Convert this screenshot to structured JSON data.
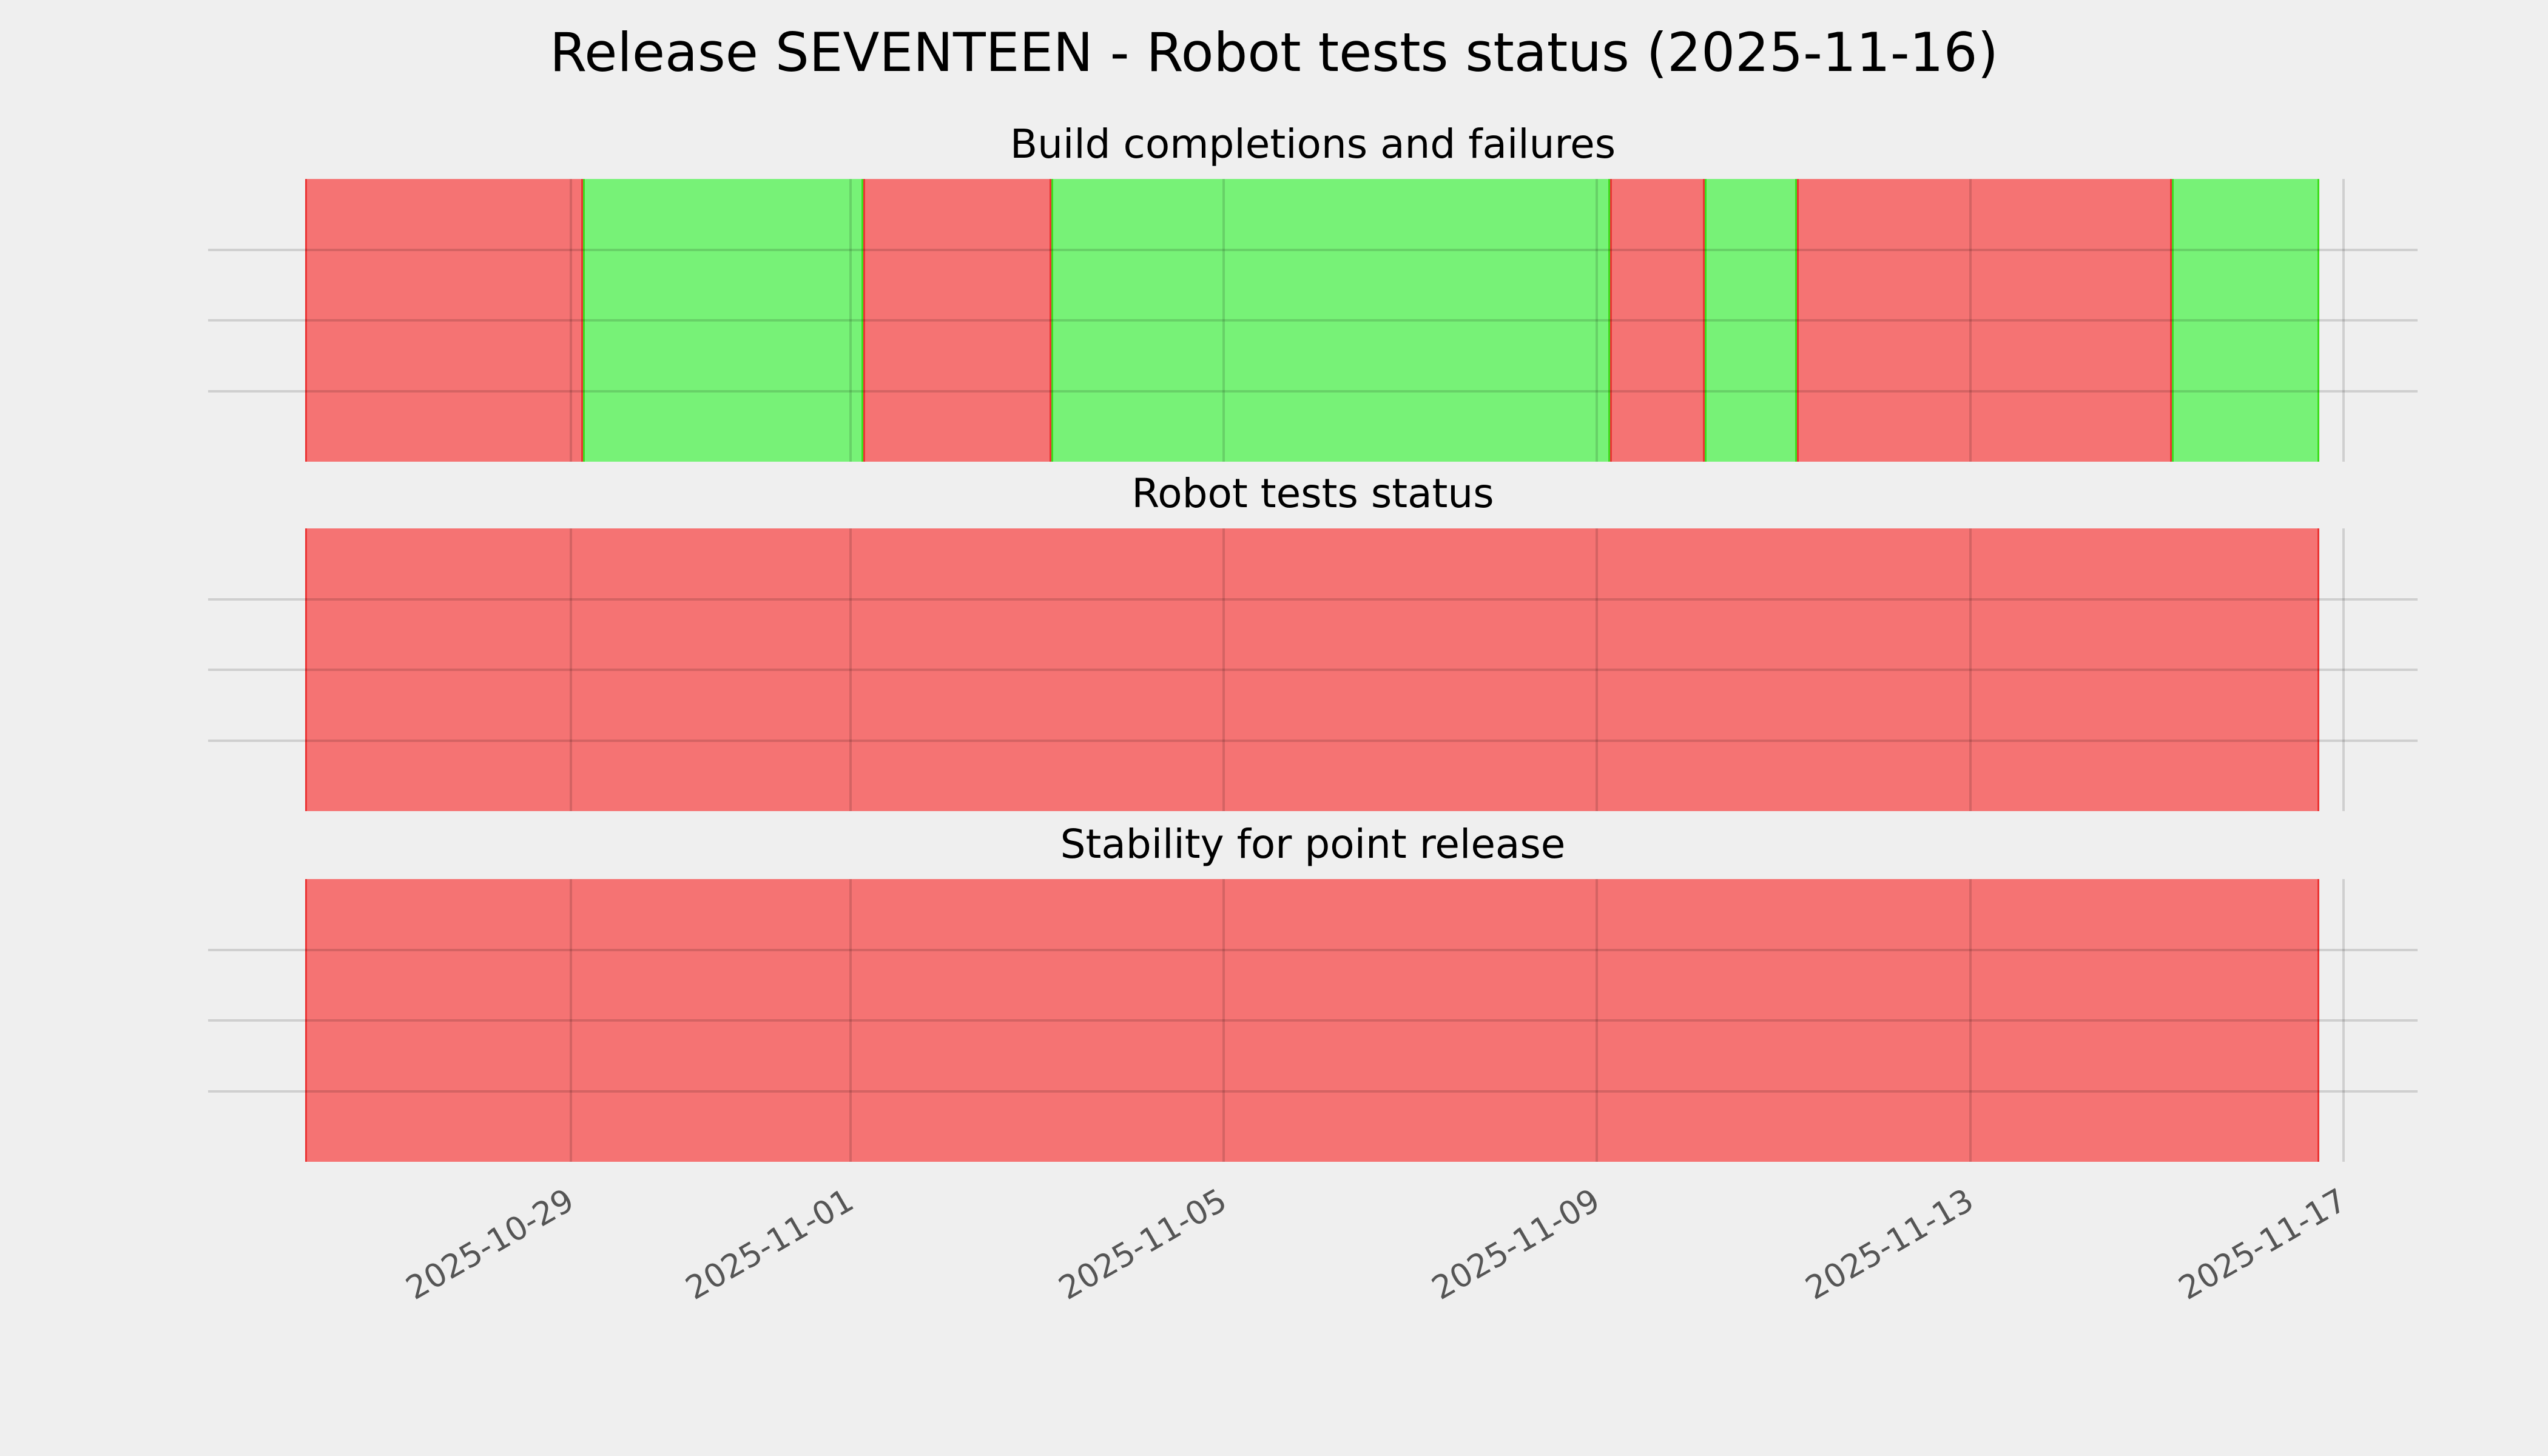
{
  "figure": {
    "title": "Release SEVENTEEN - Robot tests status (2025-11-16)",
    "background_color": "#efefef",
    "gridline_color": "rgba(0,0,0,0.135)",
    "tick_label_color": "#555555"
  },
  "chart_data": {
    "type": "status-timeline",
    "title": "Release SEVENTEEN - Robot tests status (2025-11-16)",
    "x_axis": {
      "start_date": "2025-10-26",
      "last_data_date": "2025-11-16",
      "axis_end_date": "2025-11-17",
      "grid": true,
      "tick_rotation_deg": -30
    },
    "x_ticks": [
      {
        "label": "2025-10-29",
        "pos": 0.1319
      },
      {
        "label": "2025-11-01",
        "pos": 0.2708
      },
      {
        "label": "2025-11-05",
        "pos": 0.456
      },
      {
        "label": "2025-11-09",
        "pos": 0.6412
      },
      {
        "label": "2025-11-13",
        "pos": 0.8268
      },
      {
        "label": "2025-11-17",
        "pos": 1.012
      }
    ],
    "status_colors": {
      "fail_fill": "#f57373",
      "fail_edge": "#ea3434",
      "pass_fill": "#77f277",
      "pass_edge": "#3ddd1e"
    },
    "horizontal_gridlines_per_panel": 3,
    "panels": [
      {
        "title": "Build completions and failures",
        "segments": [
          {
            "status": "fail",
            "start": "2025-10-26",
            "end": "2025-10-29",
            "from": 0.0,
            "to": 0.138
          },
          {
            "status": "pass",
            "start": "2025-10-29",
            "end": "2025-11-01",
            "from": 0.138,
            "to": 0.2771
          },
          {
            "status": "fail",
            "start": "2025-11-01",
            "end": "2025-11-03",
            "from": 0.2771,
            "to": 0.3705
          },
          {
            "status": "pass",
            "start": "2025-11-03",
            "end": "2025-11-09",
            "from": 0.3705,
            "to": 0.6479
          },
          {
            "status": "fail",
            "start": "2025-11-09",
            "end": "2025-11-10",
            "from": 0.6479,
            "to": 0.6949
          },
          {
            "status": "pass",
            "start": "2025-11-10",
            "end": "2025-11-11",
            "from": 0.6949,
            "to": 0.7407
          },
          {
            "status": "fail",
            "start": "2025-11-11",
            "end": "2025-11-15",
            "from": 0.7407,
            "to": 0.9268
          },
          {
            "status": "pass",
            "start": "2025-11-15",
            "end": "2025-11-16",
            "from": 0.9268,
            "to": 1.0
          }
        ]
      },
      {
        "title": "Robot tests status",
        "segments": [
          {
            "status": "fail",
            "start": "2025-10-26",
            "end": "2025-11-16",
            "from": 0.0,
            "to": 1.0
          }
        ]
      },
      {
        "title": "Stability for point release",
        "segments": [
          {
            "status": "fail",
            "start": "2025-10-26",
            "end": "2025-11-16",
            "from": 0.0,
            "to": 1.0
          }
        ]
      }
    ]
  }
}
